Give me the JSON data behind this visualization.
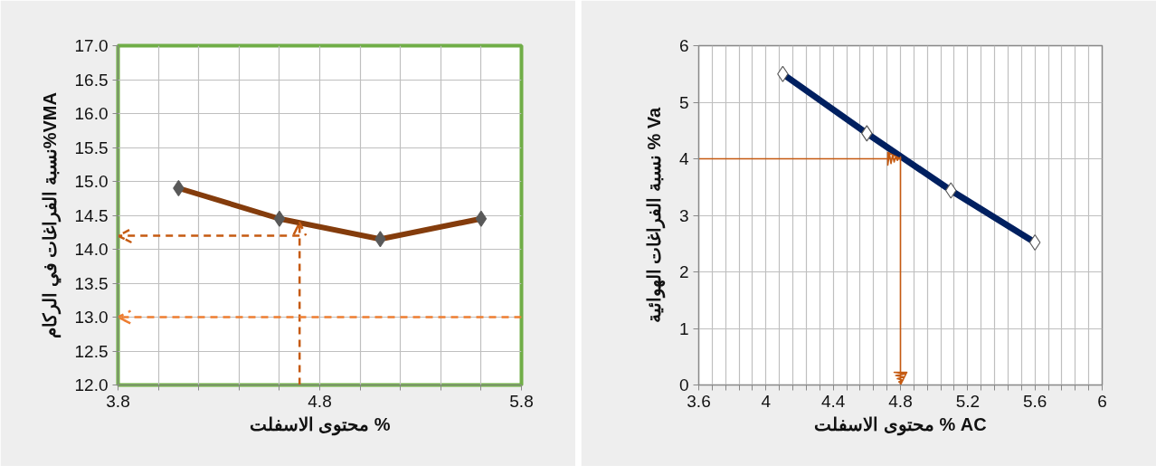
{
  "chart_data": [
    {
      "type": "line",
      "xlabel": "محتوى الاسفلت %",
      "ylabel": "نسبة الفراغات في الركام%VMA",
      "x": [
        4.1,
        4.6,
        5.1,
        5.6
      ],
      "series": [
        {
          "color": "#843c0c",
          "values": [
            14.9,
            14.45,
            14.15,
            14.45
          ]
        }
      ],
      "marker": "diamond",
      "grid": true,
      "xlim": [
        3.8,
        5.8
      ],
      "xticks": [
        3.8,
        {
          "value": 4.0,
          "label": null
        },
        {
          "value": 4.2,
          "label": null
        },
        {
          "value": 4.4,
          "label": null
        },
        {
          "value": 4.6,
          "label": null
        },
        4.8,
        {
          "value": 5.0,
          "label": null
        },
        {
          "value": 5.2,
          "label": null
        },
        {
          "value": 5.4,
          "label": null
        },
        {
          "value": 5.6,
          "label": null
        },
        5.8
      ],
      "ylim": [
        12,
        17
      ],
      "yticks": [
        {
          "value": 12,
          "label": "12.0"
        },
        12.5,
        {
          "value": 13,
          "label": "13.0"
        },
        13.5,
        {
          "value": 14,
          "label": "14.0"
        },
        14.5,
        {
          "value": 15,
          "label": "15.0"
        },
        15.5,
        {
          "value": 16,
          "label": "16.0"
        },
        16.5,
        {
          "value": 17,
          "label": "17.0"
        }
      ],
      "ref_lines": [
        {
          "axis": "x",
          "value": 4.7,
          "color": "#c55a11",
          "line_style": "dashed"
        },
        {
          "axis": "y",
          "value": 14.2,
          "color": "#c55a11",
          "line_style": "dashed"
        },
        {
          "axis": "y",
          "value": 13.0,
          "color": "#ed7d31",
          "line_style": "dashed"
        }
      ]
    },
    {
      "type": "line",
      "xlabel": "محتوى الاسفلت % AC",
      "ylabel": "نسبة الفراغات الهوائية % Va",
      "x": [
        4.1,
        4.6,
        5.1,
        5.6
      ],
      "series": [
        {
          "color": "#002060",
          "values": [
            5.5,
            4.45,
            3.44,
            2.52
          ]
        }
      ],
      "marker": "diamond",
      "grid": true,
      "xlim": [
        3.6,
        6
      ],
      "xticks": [
        3.6,
        {
          "value": 3.68,
          "label": null
        },
        {
          "value": 3.76,
          "label": null
        },
        {
          "value": 3.84,
          "label": null
        },
        {
          "value": 3.92,
          "label": null
        },
        4,
        {
          "value": 4.08,
          "label": null
        },
        {
          "value": 4.16,
          "label": null
        },
        {
          "value": 4.24,
          "label": null
        },
        {
          "value": 4.32,
          "label": null
        },
        4.4,
        {
          "value": 4.48,
          "label": null
        },
        {
          "value": 4.56,
          "label": null
        },
        {
          "value": 4.64,
          "label": null
        },
        {
          "value": 4.72,
          "label": null
        },
        4.8,
        {
          "value": 4.88,
          "label": null
        },
        {
          "value": 4.96,
          "label": null
        },
        {
          "value": 5.04,
          "label": null
        },
        {
          "value": 5.12,
          "label": null
        },
        5.2,
        {
          "value": 5.28,
          "label": null
        },
        {
          "value": 5.36,
          "label": null
        },
        {
          "value": 5.44,
          "label": null
        },
        {
          "value": 5.52,
          "label": null
        },
        5.6,
        {
          "value": 5.68,
          "label": null
        },
        {
          "value": 5.76,
          "label": null
        },
        {
          "value": 5.84,
          "label": null
        },
        {
          "value": 5.92,
          "label": null
        },
        6
      ],
      "ylim": [
        0,
        6
      ],
      "yticks": [
        0,
        1,
        2,
        3,
        4,
        5,
        6
      ],
      "ref_lines": [
        {
          "axis": "y",
          "value": 4,
          "color": "#c55a11",
          "line_style": "solid"
        },
        {
          "axis": "x",
          "value": 4.8,
          "color": "#c55a11",
          "line_style": "solid"
        }
      ]
    }
  ]
}
